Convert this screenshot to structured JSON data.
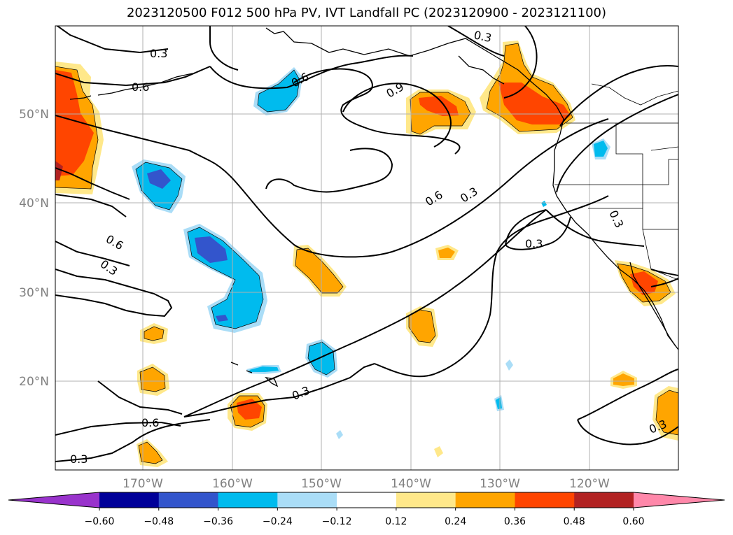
{
  "title": "2023120500 F012 500 hPa PV, IVT Landfall PC (2023120900 - 2023121100)",
  "map": {
    "lat_labels": [
      "50°N",
      "40°N",
      "30°N",
      "20°N"
    ],
    "lon_labels": [
      "170°W",
      "160°W",
      "150°W",
      "140°W",
      "130°W",
      "120°W"
    ],
    "grid": true,
    "gridline_color": "#b0b0b0",
    "contour_labels": [
      "0.3",
      "0.6",
      "0.6",
      "0.9",
      "0.3",
      "0.6",
      "0.3",
      "0.3",
      "0.3",
      "0.6",
      "0.3",
      "0.3",
      "0.6",
      "0.3",
      "0.3"
    ]
  },
  "colorbar": {
    "ticks": [
      "−0.60",
      "−0.48",
      "−0.36",
      "−0.24",
      "−0.12",
      "0.12",
      "0.24",
      "0.36",
      "0.48",
      "0.60"
    ],
    "colors": [
      "#9933cc",
      "#000099",
      "#3355cc",
      "#00bbee",
      "#aaddf7",
      "#ffffff",
      "#ffe88a",
      "#ffa500",
      "#ff4500",
      "#b22222",
      "#ff88aa"
    ]
  }
}
